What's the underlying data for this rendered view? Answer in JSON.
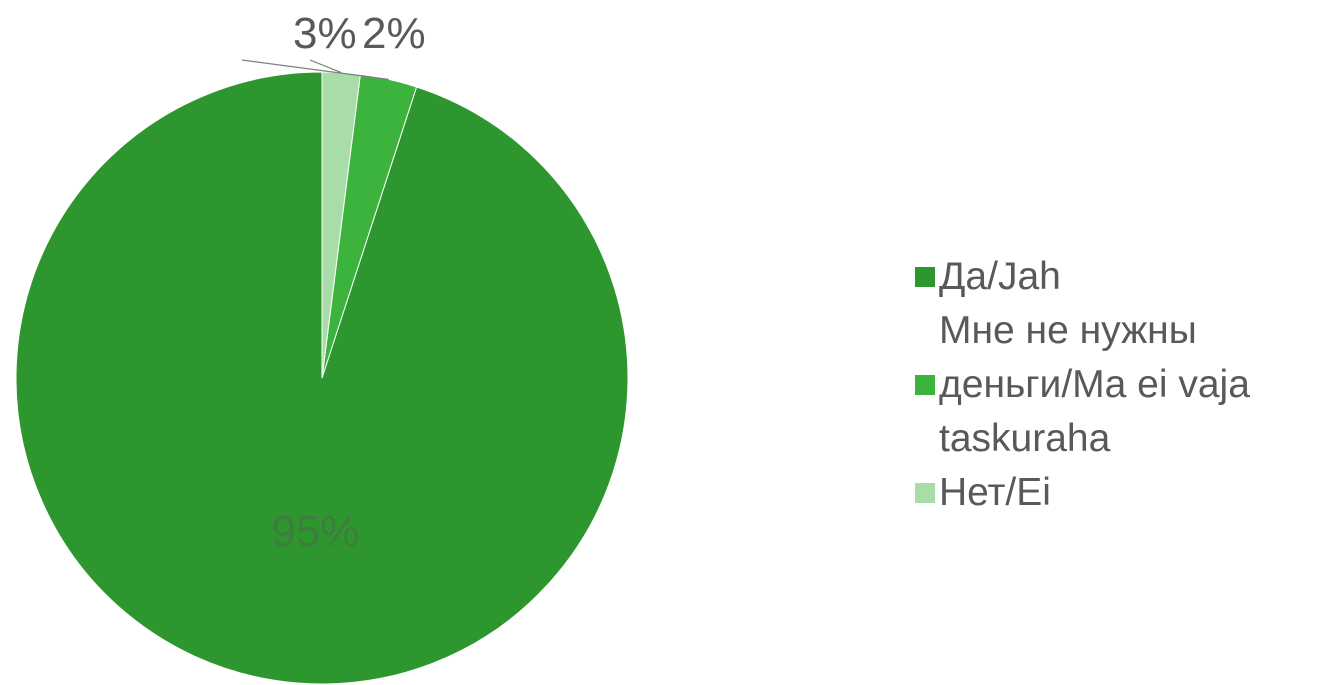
{
  "chart_data": {
    "type": "pie",
    "title": "",
    "series": [
      {
        "label": "Да/Jah",
        "value": 95,
        "display": "95%",
        "color": "#2e962e"
      },
      {
        "label": "Мне не нужны деньги/Ma ei vaja taskuraha",
        "value": 3,
        "display": "3%",
        "color": "#3cb33c"
      },
      {
        "label": "Нет/Ei",
        "value": 2,
        "display": "2%",
        "color": "#a8dca8"
      }
    ],
    "legend_position": "right"
  },
  "legend": {
    "items": [
      {
        "lines": [
          "Да/Jah"
        ],
        "color": "#2e962e"
      },
      {
        "lines": [
          "Мне не нужны",
          "деньги/Ma ei vaja",
          "taskuraha"
        ],
        "color": "#3cb33c"
      },
      {
        "lines": [
          "Нет/Ei"
        ],
        "color": "#a8dca8"
      }
    ]
  }
}
